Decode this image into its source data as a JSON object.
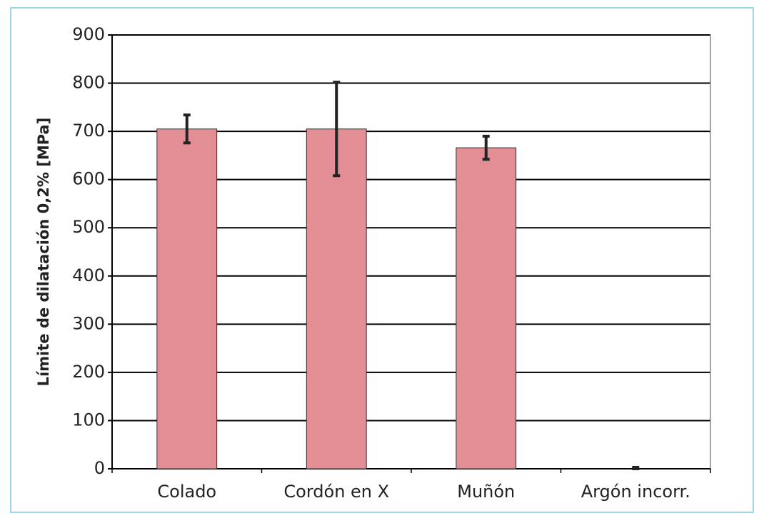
{
  "chart_data": {
    "type": "bar",
    "y_label": "Límite de dilatación 0,2% [MPa]",
    "categories": [
      "Colado",
      "Cordón en X",
      "Muñón",
      "Argón incorr."
    ],
    "values": [
      705,
      705,
      666,
      0
    ],
    "errors": [
      29,
      97,
      24,
      3
    ],
    "color": "#e38e94",
    "ylim": [
      0,
      900
    ],
    "yticks": [
      0,
      100,
      200,
      300,
      400,
      500,
      600,
      700,
      800,
      900
    ],
    "grid": true
  }
}
